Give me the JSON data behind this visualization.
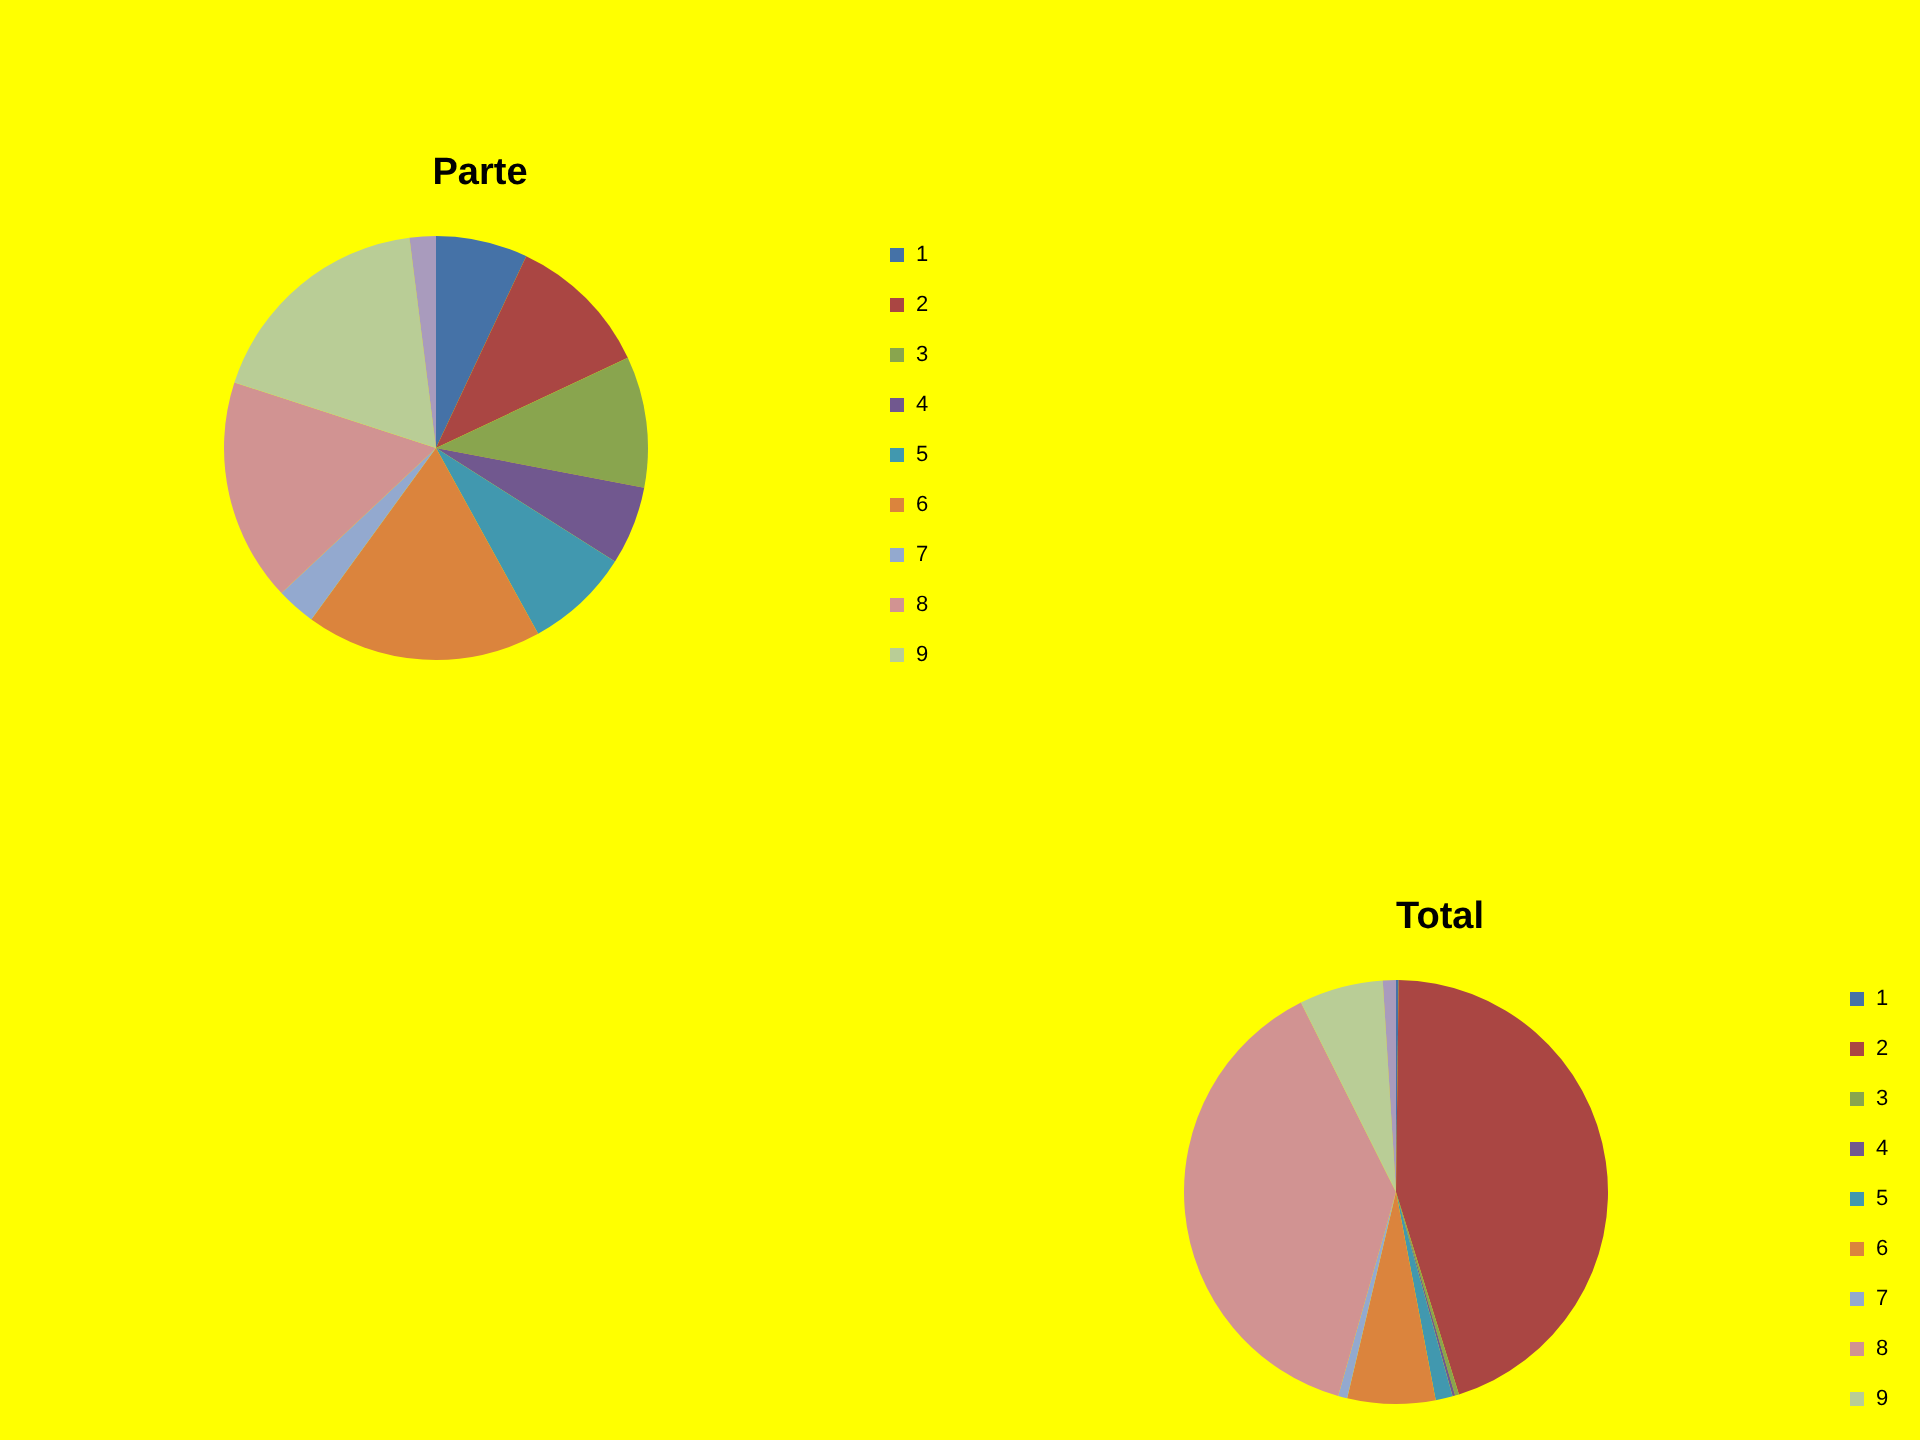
{
  "chart_data": [
    {
      "type": "pie",
      "title": "Parte",
      "categories": [
        "1",
        "2",
        "3",
        "4",
        "5",
        "6",
        "7",
        "8",
        "9",
        null
      ],
      "values": [
        7,
        11,
        10,
        6,
        8,
        18,
        3,
        17,
        18,
        2
      ],
      "colors": [
        "#4572a7",
        "#aa4643",
        "#89a54e",
        "#71588f",
        "#4198af",
        "#db843d",
        "#93a9cf",
        "#d19392",
        "#b9cd96",
        "#a99bbd"
      ],
      "legend": "right"
    },
    {
      "type": "pie",
      "title": "Total",
      "categories": [
        "1",
        "2",
        "3",
        "4",
        "5",
        "6",
        "7",
        "8",
        "9",
        null
      ],
      "values": [
        0.2,
        45,
        0.3,
        0.2,
        1.3,
        6.7,
        0.7,
        38.2,
        6.4,
        1.0
      ],
      "colors": [
        "#4572a7",
        "#aa4643",
        "#89a54e",
        "#71588f",
        "#4198af",
        "#db843d",
        "#93a9cf",
        "#d19392",
        "#b9cd96",
        "#a99bbd"
      ],
      "legend": "right"
    }
  ]
}
